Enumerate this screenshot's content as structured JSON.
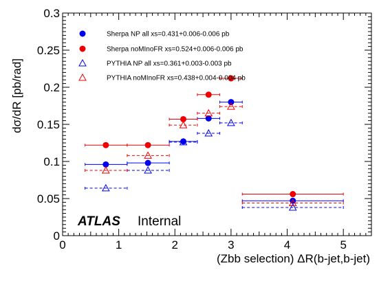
{
  "chart_data": {
    "type": "scatter",
    "xlabel": "(Zbb selection) ΔR(b-jet,b-jet)",
    "ylabel": "dσ/dR [pb/rad]",
    "xlim": [
      0,
      5.5
    ],
    "ylim": [
      0,
      0.3
    ],
    "xticks": [
      "0",
      "1",
      "2",
      "3",
      "4",
      "5"
    ],
    "yticks": [
      "0",
      "0.05",
      "0.1",
      "0.15",
      "0.2",
      "0.25",
      "0.3"
    ],
    "grid": false,
    "legend_position": "top-left",
    "annotation": {
      "experiment": "ATLAS",
      "status": "Internal"
    },
    "bin_edges": [
      0.4,
      1.15,
      1.9,
      2.4,
      2.8,
      3.2,
      5.0
    ],
    "series": [
      {
        "name": "Sherpa NP all",
        "label": "Sherpa NP all      xs=0.431+0.006-0.006 pb",
        "color": "#0000ee",
        "marker": "filled-circle",
        "line": "solid",
        "x": [
          0.77,
          1.52,
          2.15,
          2.6,
          3.0,
          4.1
        ],
        "y": [
          0.096,
          0.098,
          0.127,
          0.158,
          0.18,
          0.047
        ]
      },
      {
        "name": "Sherpa noMInoFR",
        "label": "Sherpa noMInoFR    xs=0.524+0.006-0.006 pb",
        "color": "#ee0000",
        "marker": "filled-circle",
        "line": "solid",
        "x": [
          0.77,
          1.52,
          2.15,
          2.6,
          3.0,
          4.1
        ],
        "y": [
          0.122,
          0.122,
          0.157,
          0.19,
          0.212,
          0.056
        ]
      },
      {
        "name": "PYTHIA NP all",
        "label": "PYTHIA NP all    xs=0.361+0.003-0.003 pb",
        "color": "#0000ee",
        "marker": "open-triangle",
        "line": "dashed",
        "x": [
          0.77,
          1.52,
          2.15,
          2.6,
          3.0,
          4.1
        ],
        "y": [
          0.064,
          0.088,
          0.126,
          0.138,
          0.152,
          0.038
        ]
      },
      {
        "name": "PYTHIA noMInoFR",
        "label": "PYTHIA noMInoFR  xs=0.438+0.004-0.004 pb",
        "color": "#ee0000",
        "marker": "open-triangle",
        "line": "dashed",
        "x": [
          0.77,
          1.52,
          2.15,
          2.6,
          3.0,
          4.1
        ],
        "y": [
          0.088,
          0.108,
          0.149,
          0.165,
          0.174,
          0.044
        ]
      }
    ]
  }
}
